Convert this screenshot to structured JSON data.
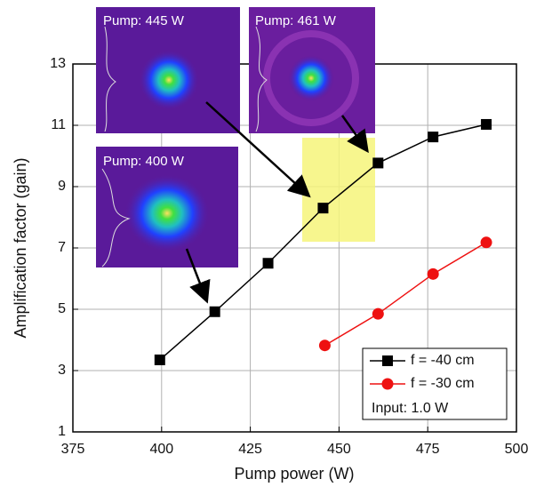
{
  "chart_data": {
    "type": "line",
    "x_label": "Pump power (W)",
    "y_label": "Amplification factor (gain)",
    "xlim": [
      375,
      500
    ],
    "xticks": [
      375,
      400,
      425,
      450,
      475,
      500
    ],
    "ylim": [
      1,
      13
    ],
    "yticks": [
      1,
      3,
      5,
      7,
      9,
      11,
      13
    ],
    "grid": true,
    "legend": "lower right",
    "series": [
      {
        "name": "f = -40 cm",
        "color": "#000000",
        "marker": "square",
        "x": [
          399.5,
          415,
          430,
          445.5,
          461,
          476.5,
          491.5
        ],
        "values": [
          3.35,
          4.92,
          6.5,
          8.3,
          9.77,
          10.62,
          11.03
        ]
      },
      {
        "name": "f = -30 cm",
        "color": "#ee1111",
        "marker": "circle",
        "x": [
          446,
          461,
          476.5,
          491.5
        ],
        "values": [
          3.82,
          4.85,
          6.15,
          7.18
        ]
      }
    ],
    "legend_note": "Input: 1.0 W",
    "annotations": [
      "Pump: 445 W",
      "Pump: 461 W",
      "Pump: 400 W"
    ]
  }
}
